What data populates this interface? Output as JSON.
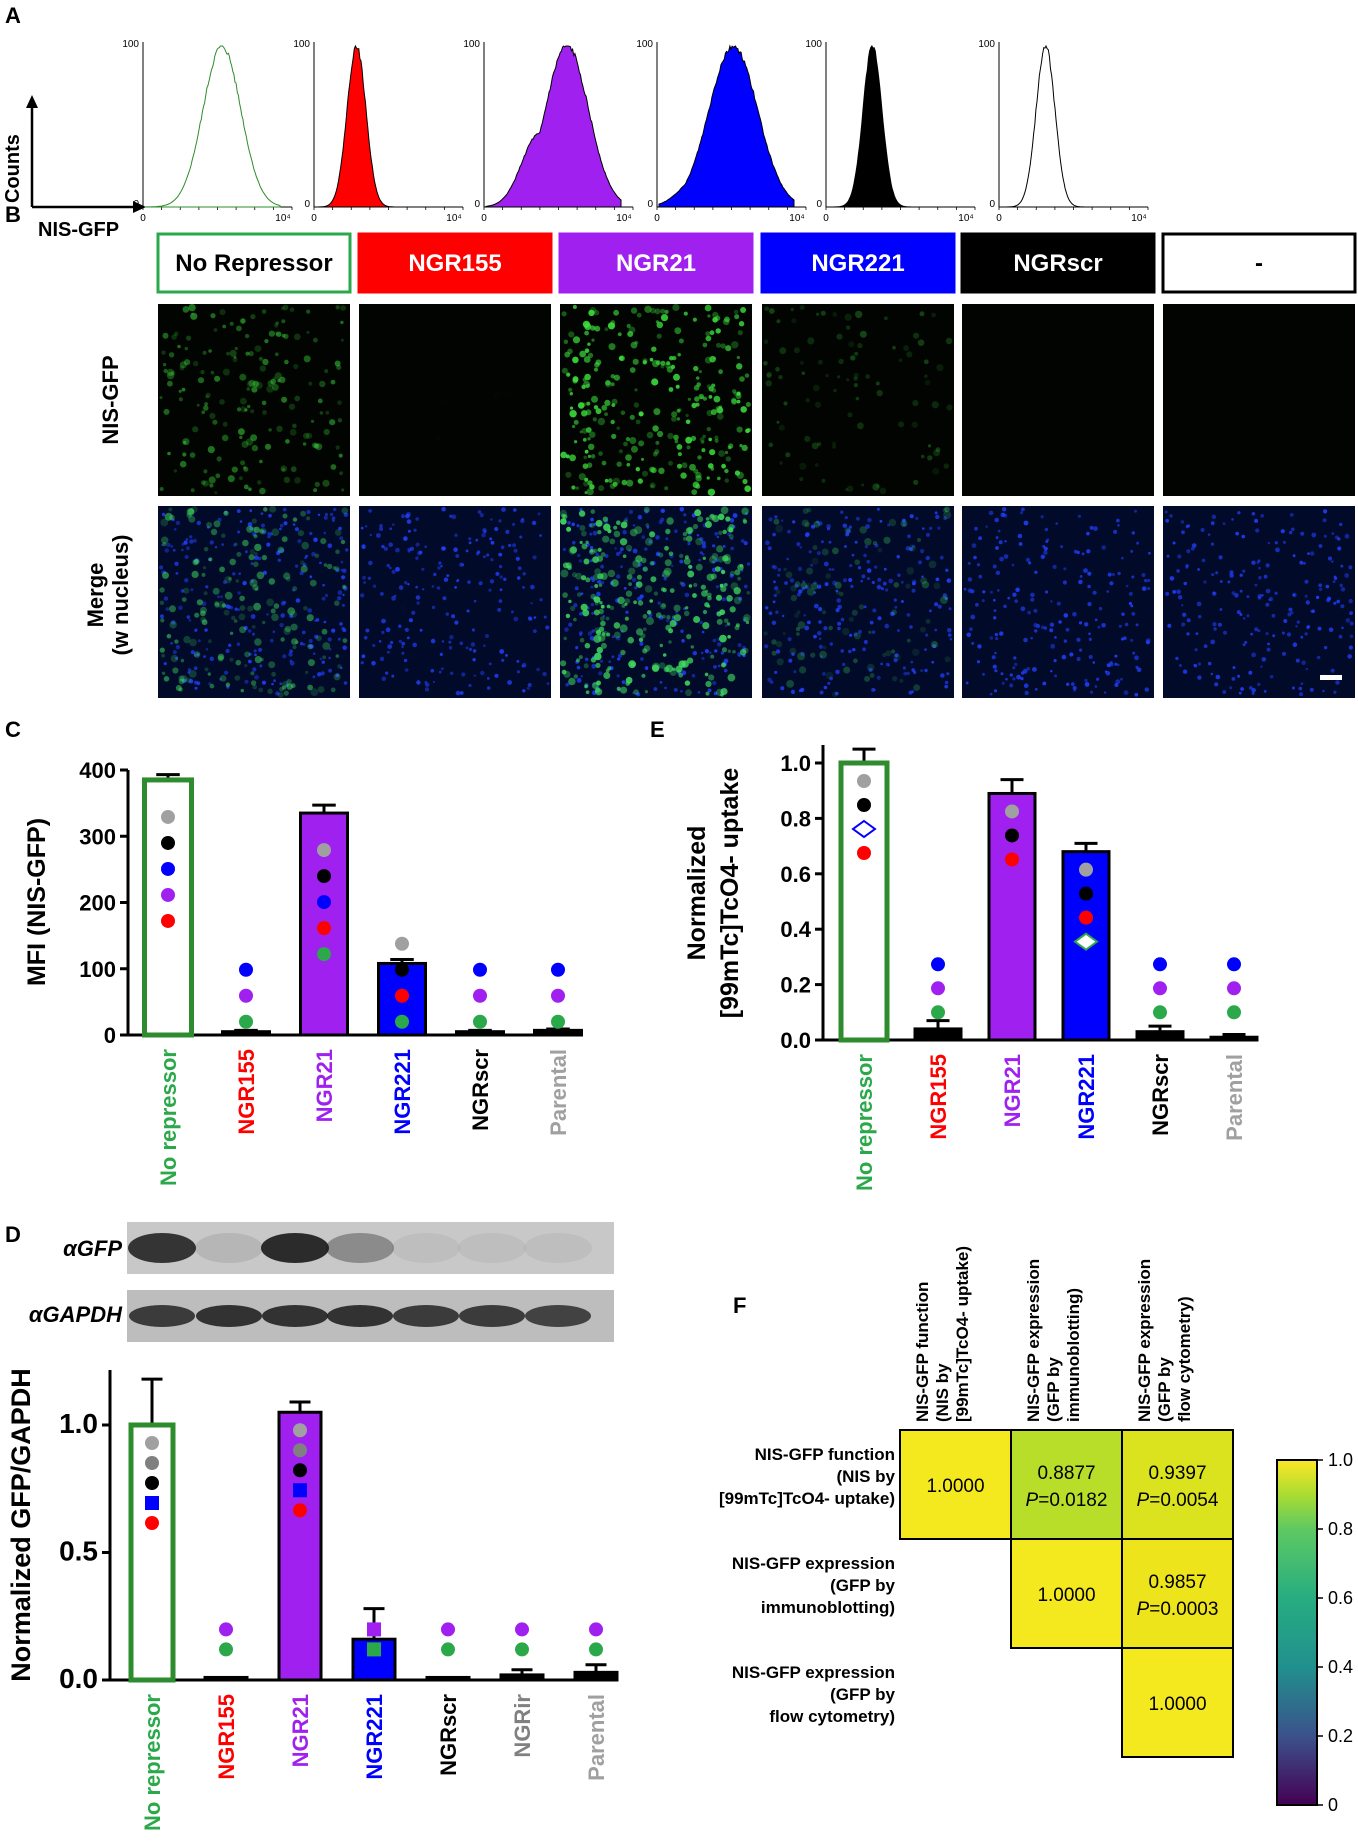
{
  "panel_labels": {
    "a": "A",
    "b": "B",
    "c": "C",
    "d": "D",
    "e": "E",
    "f": "F"
  },
  "panel_a": {
    "y_axis_label": "Counts",
    "x_axis_label": "NIS-GFP",
    "tick_ymax": "100",
    "tick_ymin": "0",
    "tick_xmin": "0",
    "tick_xmax": "10⁴",
    "histograms": [
      {
        "name": "No Repressor",
        "fill": "none",
        "stroke": "#2e8b2e",
        "peak": 0.57,
        "width": 0.14,
        "shoulder": 0.0
      },
      {
        "name": "NGR155",
        "fill": "#ff0000",
        "stroke": "#000000",
        "peak": 0.3,
        "width": 0.07,
        "shoulder": 0.0
      },
      {
        "name": "NGR21",
        "fill": "#a020f0",
        "stroke": "#000000",
        "peak": 0.6,
        "width": 0.16,
        "shoulder": 0.45
      },
      {
        "name": "NGR221",
        "fill": "#0000ff",
        "stroke": "#000000",
        "peak": 0.55,
        "width": 0.18,
        "shoulder": 0.2
      },
      {
        "name": "NGRscr",
        "fill": "#000000",
        "stroke": "#000000",
        "peak": 0.33,
        "width": 0.07,
        "shoulder": 0.0
      },
      {
        "name": "-",
        "fill": "#ffffff",
        "stroke": "#000000",
        "peak": 0.33,
        "width": 0.07,
        "shoulder": 0.0
      }
    ]
  },
  "panel_b": {
    "groups": [
      {
        "label": "No Repressor",
        "bg": "#ffffff",
        "fg": "#000000",
        "border": "#2ba84a",
        "intensity": 0.55,
        "density": 0.6
      },
      {
        "label": "NGR155",
        "bg": "#ff0000",
        "fg": "#ffffff",
        "border": "#ff0000",
        "intensity": 0.02,
        "density": 0.02
      },
      {
        "label": "NGR21",
        "bg": "#a020f0",
        "fg": "#ffffff",
        "border": "#a020f0",
        "intensity": 0.9,
        "density": 0.95
      },
      {
        "label": "NGR221",
        "bg": "#0000ff",
        "fg": "#ffffff",
        "border": "#0000ff",
        "intensity": 0.3,
        "density": 0.3
      },
      {
        "label": "NGRscr",
        "bg": "#000000",
        "fg": "#ffffff",
        "border": "#000000",
        "intensity": 0.0,
        "density": 0.0
      },
      {
        "label": "-",
        "bg": "#ffffff",
        "fg": "#000000",
        "border": "#000000",
        "intensity": 0.0,
        "density": 0.0
      }
    ],
    "row_labels": [
      "NIS-GFP",
      "Merge",
      "(w nucleus)"
    ]
  },
  "chart_data": [
    {
      "panel": "C",
      "type": "bar",
      "ylabel": "MFI (NIS-GFP)",
      "ylim": [
        0,
        400
      ],
      "yticks": [
        "0",
        "100",
        "200",
        "300",
        "400"
      ],
      "categories": [
        "No repressor",
        "NGR155",
        "NGR21",
        "NGR221",
        "NGRscr",
        "Parental"
      ],
      "category_colors": [
        "#2ba84a",
        "#ff0000",
        "#a020f0",
        "#0000ff",
        "#000000",
        "#a0a0a0"
      ],
      "values": [
        385,
        5,
        335,
        108,
        5,
        7
      ],
      "errors": [
        8,
        2,
        12,
        6,
        2,
        2
      ],
      "bar_fill": [
        "#ffffff",
        "#000000",
        "#a020f0",
        "#0000ff",
        "#000000",
        "#000000"
      ],
      "bar_stroke": [
        "#2e8b2e",
        "#000000",
        "#000000",
        "#000000",
        "#000000",
        "#000000"
      ],
      "markers": [
        [
          "#a0a0a0",
          "#000000",
          "#0000ff",
          "#a020f0",
          "#ff0000"
        ],
        [
          "#0000ff",
          "#a020f0",
          "#2ba84a"
        ],
        [
          "#a0a0a0",
          "#000000",
          "#0000ff",
          "#ff0000",
          "#2ba84a"
        ],
        [
          "#a0a0a0",
          "#000000",
          "#ff0000",
          "#2ba84a"
        ],
        [
          "#0000ff",
          "#a020f0",
          "#2ba84a"
        ],
        [
          "#0000ff",
          "#a020f0",
          "#2ba84a"
        ]
      ]
    },
    {
      "panel": "E",
      "type": "bar",
      "ylabel_line1": "Normalized",
      "ylabel_line2": "[99mTc]TcO4- uptake",
      "ylim": [
        0,
        1.0
      ],
      "yticks": [
        "0.0",
        "0.2",
        "0.4",
        "0.6",
        "0.8",
        "1.0"
      ],
      "categories": [
        "No repressor",
        "NGR155",
        "NGR21",
        "NGR221",
        "NGRscr",
        "Parental"
      ],
      "category_colors": [
        "#2ba84a",
        "#ff0000",
        "#a020f0",
        "#0000ff",
        "#000000",
        "#a0a0a0"
      ],
      "values": [
        1.0,
        0.04,
        0.89,
        0.68,
        0.03,
        0.01
      ],
      "errors": [
        0.05,
        0.03,
        0.05,
        0.03,
        0.02,
        0.01
      ],
      "bar_fill": [
        "#ffffff",
        "#000000",
        "#a020f0",
        "#0000ff",
        "#000000",
        "#000000"
      ],
      "bar_stroke": [
        "#2e8b2e",
        "#000000",
        "#000000",
        "#000000",
        "#000000",
        "#000000"
      ],
      "markers": [
        [
          "#a0a0a0",
          "#000000",
          "diamond:#0000ff",
          "#ff0000"
        ],
        [
          "#0000ff",
          "#a020f0",
          "#2ba84a"
        ],
        [
          "#a0a0a0",
          "#000000",
          "#ff0000"
        ],
        [
          "#a0a0a0",
          "#000000",
          "#ff0000",
          "diamond:#2ba84a"
        ],
        [
          "#0000ff",
          "#a020f0",
          "#2ba84a"
        ],
        [
          "#0000ff",
          "#a020f0",
          "#2ba84a"
        ]
      ]
    },
    {
      "panel": "D",
      "type": "bar",
      "ylabel": "Normalized GFP/GAPDH",
      "ylim": [
        0,
        1.0
      ],
      "yticks": [
        "0.0",
        "0.5",
        "1.0"
      ],
      "categories": [
        "No repressor",
        "NGR155",
        "NGR21",
        "NGR221",
        "NGRscr",
        "NGRir",
        "Parental"
      ],
      "category_colors": [
        "#2ba84a",
        "#ff0000",
        "#a020f0",
        "#0000ff",
        "#000000",
        "#808080",
        "#a0a0a0"
      ],
      "values": [
        1.0,
        0.01,
        1.05,
        0.16,
        0.01,
        0.02,
        0.03
      ],
      "errors": [
        0.18,
        0.0,
        0.04,
        0.12,
        0.0,
        0.02,
        0.03
      ],
      "bar_fill": [
        "#ffffff",
        "#000000",
        "#a020f0",
        "#0000ff",
        "#000000",
        "#000000",
        "#000000"
      ],
      "bar_stroke": [
        "#2e8b2e",
        "#000000",
        "#000000",
        "#000000",
        "#000000",
        "#000000",
        "#000000"
      ],
      "markers": [
        [
          "#a0a0a0",
          "#808080",
          "#000000",
          "square:#0000ff",
          "#ff0000"
        ],
        [
          "#a020f0",
          "#2ba84a"
        ],
        [
          "#a0a0a0",
          "#808080",
          "#000000",
          "square:#0000ff",
          "#ff0000"
        ],
        [
          "square:#a020f0",
          "square:#2ba84a"
        ],
        [
          "#a020f0",
          "#2ba84a"
        ],
        [
          "#a020f0",
          "#2ba84a"
        ],
        [
          "#a020f0",
          "#2ba84a"
        ]
      ]
    },
    {
      "panel": "F",
      "type": "heatmap",
      "row_labels": [
        [
          "NIS-GFP function",
          "(NIS by",
          "[99mTc]TcO4- uptake)"
        ],
        [
          "NIS-GFP expression",
          "(GFP by",
          "immunoblotting)"
        ],
        [
          "NIS-GFP expression",
          "(GFP by",
          "flow cytometry)"
        ]
      ],
      "col_labels": [
        [
          "NIS-GFP function",
          "(NIS by",
          "[99mTc]TcO4- uptake)"
        ],
        [
          "NIS-GFP expression",
          "(GFP by",
          "immunoblotting)"
        ],
        [
          "NIS-GFP expression",
          "(GFP by",
          "flow cytometry)"
        ]
      ],
      "cells": [
        [
          {
            "value": "1.0000",
            "p": ""
          },
          {
            "value": "0.8877",
            "p": "=0.0182"
          },
          {
            "value": "0.9397",
            "p": "=0.0054"
          }
        ],
        [
          null,
          {
            "value": "1.0000",
            "p": ""
          },
          {
            "value": "0.9857",
            "p": "=0.0003"
          }
        ],
        [
          null,
          null,
          {
            "value": "1.0000",
            "p": ""
          }
        ]
      ],
      "cell_colors": [
        [
          "#f4e81e",
          "#b9de2a",
          "#dbe31f"
        ],
        [
          null,
          "#f4e81e",
          "#ede41c"
        ],
        [
          null,
          null,
          "#f4e81e"
        ]
      ],
      "colorbar_ticks": [
        "0",
        "0.2",
        "0.4",
        "0.6",
        "0.8",
        "1.0"
      ],
      "p_prefix": "P"
    }
  ],
  "panel_d_blot": {
    "labels": [
      "αGFP",
      "αGAPDH"
    ],
    "gfp_bands": [
      0.85,
      0.1,
      0.9,
      0.35,
      0.05,
      0.05,
      0.05
    ],
    "gapdh_bands": [
      0.8,
      0.85,
      0.85,
      0.85,
      0.8,
      0.8,
      0.75
    ]
  }
}
